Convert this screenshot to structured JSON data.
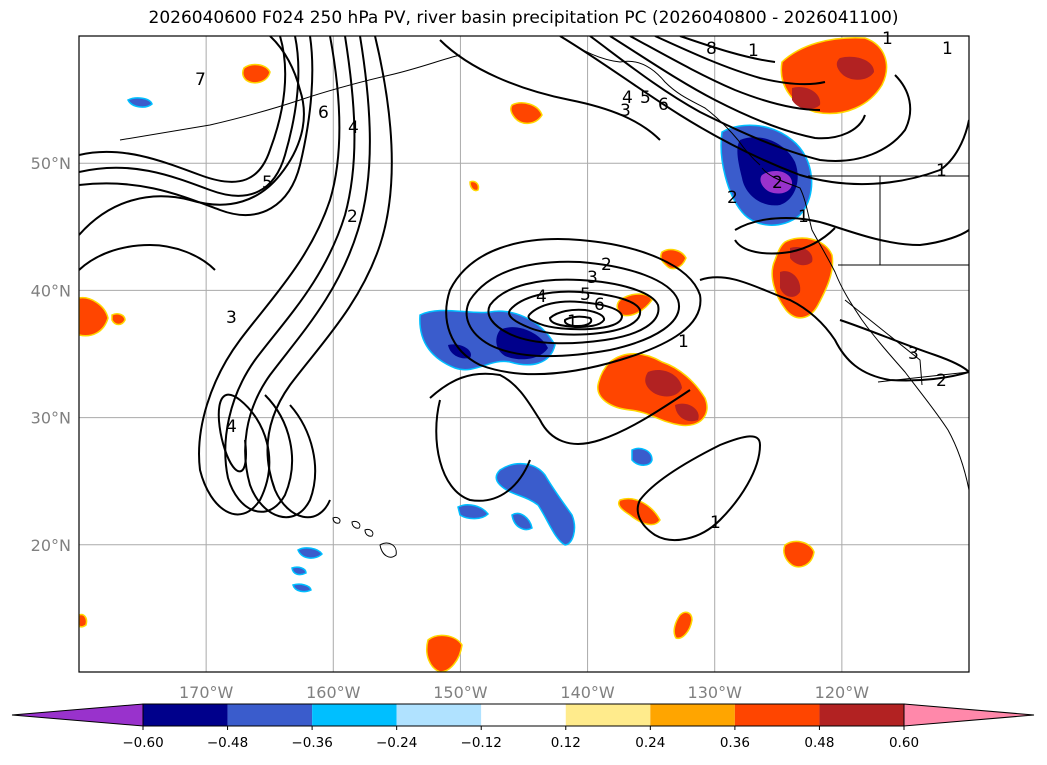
{
  "title": "2026040600 F024 250 hPa PV, river basin precipitation PC (2026040800 - 2026041100)",
  "chart_data": {
    "type": "contour-map",
    "title": "2026040600 F024 250 hPa PV, river basin precipitation PC (2026040800 - 2026041100)",
    "lon_range": [
      -180,
      -110
    ],
    "lat_range": [
      10,
      60
    ],
    "lat_ticks": [
      {
        "value": 50,
        "label": "50°N"
      },
      {
        "value": 40,
        "label": "40°N"
      },
      {
        "value": 30,
        "label": "30°N"
      },
      {
        "value": 20,
        "label": "20°N"
      }
    ],
    "lon_ticks": [
      {
        "value": -170,
        "label": "170°W"
      },
      {
        "value": -160,
        "label": "160°W"
      },
      {
        "value": -150,
        "label": "150°W"
      },
      {
        "value": -140,
        "label": "140°W"
      },
      {
        "value": -130,
        "label": "130°W"
      },
      {
        "value": -120,
        "label": "120°W"
      }
    ],
    "colorbar": {
      "levels": [
        -0.6,
        -0.48,
        -0.36,
        -0.24,
        -0.12,
        0.12,
        0.24,
        0.36,
        0.48,
        0.6
      ],
      "tick_labels": [
        "−0.60",
        "−0.48",
        "−0.36",
        "−0.24",
        "−0.12",
        "0.12",
        "0.24",
        "0.36",
        "0.48",
        "0.60"
      ],
      "colors": [
        "#9932cc",
        "#00008b",
        "#3a5ccc",
        "#00bfff",
        "#b0e2ff",
        "#ffffff",
        "#ffeb8c",
        "#ffa500",
        "#ff4500",
        "#b22222",
        "#ff88aa"
      ],
      "extend": "both"
    },
    "pv_contour_labels": [
      "7",
      "6",
      "4",
      "5",
      "2",
      "3",
      "4",
      "2",
      "3",
      "4",
      "5",
      "6",
      "1",
      "1",
      "2",
      "3",
      "4",
      "5",
      "6",
      "8",
      "1",
      "1",
      "3",
      "2",
      "1",
      "2",
      "1",
      "1",
      "1"
    ]
  }
}
